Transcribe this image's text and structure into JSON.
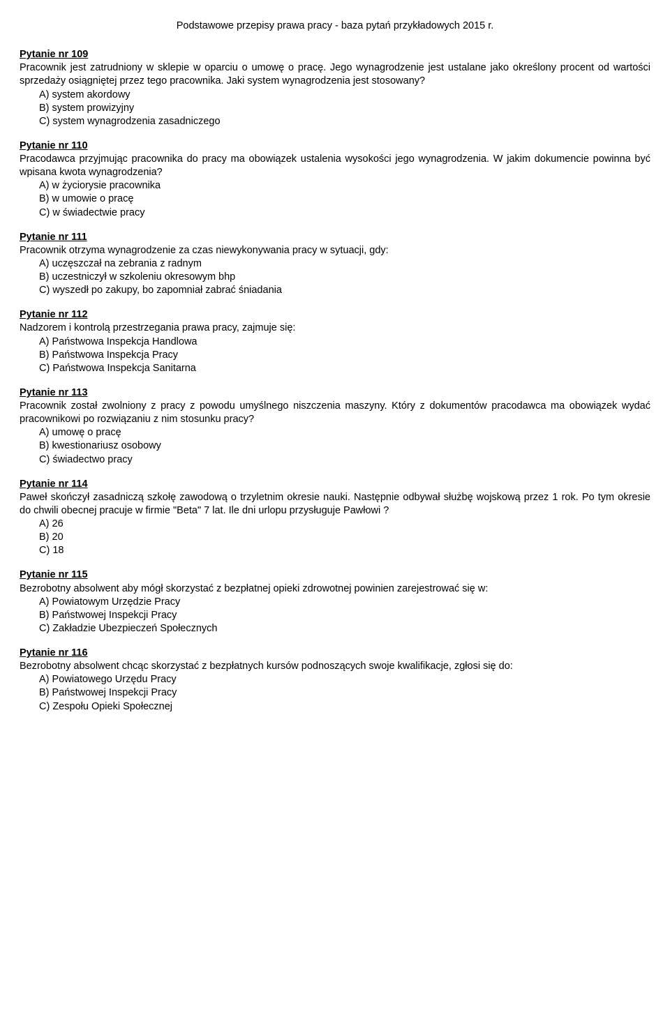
{
  "header": {
    "title": "Podstawowe przepisy prawa pracy - baza pytań przykładowych 2015 r."
  },
  "questions": [
    {
      "title": "Pytanie nr 109",
      "text": "Pracownik jest zatrudniony w sklepie w oparciu o umowę o pracę. Jego wynagrodzenie jest ustalane jako określony procent od wartości sprzedaży osiągniętej przez tego pracownika. Jaki system wynagrodzenia jest stosowany?",
      "answers": [
        "A)  system akordowy",
        "B)  system prowizyjny",
        "C)  system wynagrodzenia zasadniczego"
      ]
    },
    {
      "title": "Pytanie nr 110",
      "text": "Pracodawca przyjmując pracownika do pracy ma obowiązek ustalenia wysokości jego wynagrodzenia. W jakim dokumencie powinna być wpisana kwota wynagrodzenia?",
      "answers": [
        "A)  w życiorysie pracownika",
        "B)  w umowie o pracę",
        "C)  w świadectwie pracy"
      ]
    },
    {
      "title": "Pytanie nr 111",
      "text": "Pracownik otrzyma wynagrodzenie za czas niewykonywania pracy w sytuacji, gdy:",
      "answers": [
        "A)  uczęszczał na zebrania z radnym",
        "B)  uczestniczył w szkoleniu okresowym bhp",
        "C)  wyszedł po zakupy, bo zapomniał zabrać śniadania"
      ]
    },
    {
      "title": "Pytanie nr 112",
      "text": "Nadzorem i kontrolą przestrzegania prawa pracy, zajmuje się:",
      "answers": [
        "A)  Państwowa Inspekcja Handlowa",
        "B)  Państwowa Inspekcja Pracy",
        "C)  Państwowa Inspekcja Sanitarna"
      ]
    },
    {
      "title": "Pytanie nr 113",
      "text": "Pracownik został zwolniony z pracy z powodu umyślnego niszczenia maszyny. Który z dokumentów pracodawca ma obowiązek wydać pracownikowi po rozwiązaniu z nim stosunku pracy?",
      "answers": [
        "A)  umowę o pracę",
        "B)  kwestionariusz osobowy",
        "C)  świadectwo pracy"
      ]
    },
    {
      "title": "Pytanie nr 114",
      "text": "Paweł  skończył  zasadniczą  szkołę  zawodową  o  trzyletnim okresie nauki. Następnie odbywał służbę wojskową  przez 1 rok.  Po tym okresie do chwili obecnej pracuje w firmie \"Beta\"  7 lat.  Ile dni urlopu przysługuje Pawłowi ?",
      "answers": [
        "A) 26",
        "B) 20",
        "C) 18"
      ]
    },
    {
      "title": "Pytanie nr 115",
      "text": "Bezrobotny absolwent aby mógł skorzystać z bezpłatnej opieki zdrowotnej powinien zarejestrować się w:",
      "answers": [
        "A)  Powiatowym Urzędzie Pracy",
        "B)  Państwowej Inspekcji Pracy",
        "C)  Zakładzie Ubezpieczeń Społecznych"
      ]
    },
    {
      "title": "Pytanie nr 116",
      "text": "Bezrobotny absolwent chcąc skorzystać z bezpłatnych kursów podnoszących swoje kwalifikacje, zgłosi się do:",
      "answers": [
        "A)  Powiatowego Urzędu Pracy",
        "B)  Państwowej Inspekcji Pracy",
        "C)  Zespołu Opieki Społecznej"
      ]
    }
  ]
}
